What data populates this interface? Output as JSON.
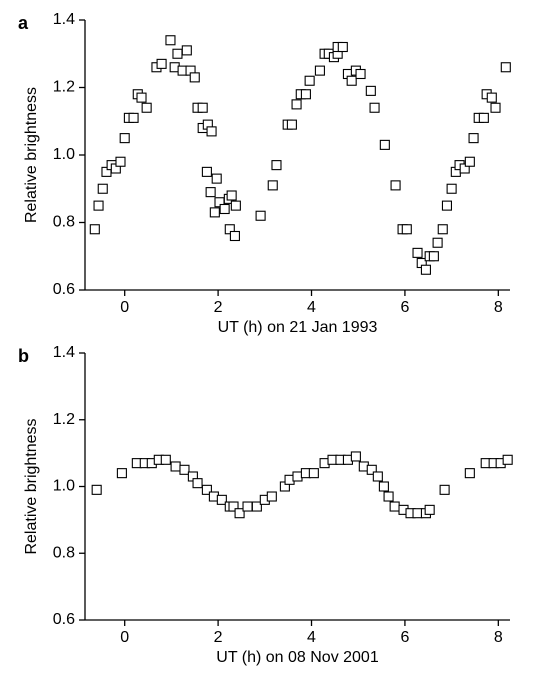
{
  "chart_data": [
    {
      "type": "scatter",
      "panel_label": "a",
      "ylabel": "Relative brightness",
      "xlabel": "UT (h) on 21 Jan 1993",
      "xlim": [
        -0.85,
        8.25
      ],
      "ylim": [
        0.6,
        1.4
      ],
      "xticks": [
        0,
        2,
        4,
        6,
        8
      ],
      "yticks": [
        0.6,
        0.8,
        {
          "value": 1,
          "label": "1.0"
        },
        1.2,
        1.4
      ],
      "color": "#000000",
      "x": [
        -0.64,
        -0.56,
        -0.47,
        -0.39,
        -0.28,
        -0.19,
        -0.09,
        0.0,
        0.09,
        0.19,
        0.28,
        0.36,
        0.47,
        0.68,
        0.79,
        0.98,
        1.07,
        1.13,
        1.24,
        1.33,
        1.41,
        1.5,
        1.56,
        1.67,
        1.67,
        1.78,
        1.86,
        1.76,
        1.84,
        1.97,
        1.93,
        2.03,
        2.14,
        2.23,
        2.29,
        2.38,
        2.25,
        2.36,
        2.91,
        3.17,
        3.25,
        3.49,
        3.58,
        3.68,
        3.77,
        3.88,
        3.96,
        4.18,
        4.28,
        4.37,
        4.48,
        4.56,
        4.56,
        4.67,
        4.78,
        4.86,
        4.95,
        5.05,
        5.27,
        5.35,
        5.57,
        5.8,
        5.95,
        6.04,
        6.27,
        6.36,
        6.45,
        6.53,
        6.62,
        6.7,
        6.81,
        6.9,
        7.0,
        7.09,
        7.17,
        7.28,
        7.39,
        7.47,
        7.58,
        7.69,
        7.75,
        7.86,
        7.94,
        8.16
      ],
      "values": [
        0.78,
        0.85,
        0.9,
        0.95,
        0.97,
        0.96,
        0.98,
        1.05,
        1.11,
        1.11,
        1.18,
        1.17,
        1.14,
        1.26,
        1.27,
        1.34,
        1.26,
        1.3,
        1.25,
        1.31,
        1.25,
        1.23,
        1.14,
        1.14,
        1.08,
        1.09,
        1.07,
        0.95,
        0.89,
        0.93,
        0.83,
        0.86,
        0.84,
        0.87,
        0.88,
        0.85,
        0.78,
        0.76,
        0.82,
        0.91,
        0.97,
        1.09,
        1.09,
        1.15,
        1.18,
        1.18,
        1.22,
        1.25,
        1.3,
        1.3,
        1.29,
        1.3,
        1.32,
        1.32,
        1.24,
        1.22,
        1.25,
        1.24,
        1.19,
        1.14,
        1.03,
        0.91,
        0.78,
        0.78,
        0.71,
        0.68,
        0.66,
        0.7,
        0.7,
        0.74,
        0.78,
        0.85,
        0.9,
        0.95,
        0.97,
        0.96,
        0.98,
        1.05,
        1.11,
        1.11,
        1.18,
        1.17,
        1.14,
        1.26
      ]
    },
    {
      "type": "scatter",
      "panel_label": "b",
      "ylabel": "Relative brightness",
      "xlabel": "UT (h) on 08 Nov 2001",
      "xlim": [
        -0.85,
        8.25
      ],
      "ylim": [
        0.6,
        1.4
      ],
      "xticks": [
        0,
        2,
        4,
        6,
        8
      ],
      "yticks": [
        0.6,
        0.8,
        {
          "value": 1,
          "label": "1.0"
        },
        1.2,
        1.4
      ],
      "color": "#000000",
      "x": [
        -0.6,
        -0.06,
        0.26,
        0.43,
        0.58,
        0.73,
        0.88,
        1.09,
        1.28,
        1.46,
        1.56,
        1.76,
        1.91,
        2.08,
        2.25,
        2.33,
        2.46,
        2.63,
        2.83,
        3.0,
        3.15,
        3.43,
        3.53,
        3.7,
        3.88,
        4.05,
        4.28,
        4.45,
        4.62,
        4.78,
        4.95,
        5.12,
        5.29,
        5.42,
        5.55,
        5.65,
        5.78,
        5.97,
        6.12,
        6.27,
        6.45,
        6.53,
        6.85,
        7.39,
        7.73,
        7.9,
        8.05,
        8.2
      ],
      "values": [
        0.99,
        1.04,
        1.07,
        1.07,
        1.07,
        1.08,
        1.08,
        1.06,
        1.05,
        1.03,
        1.01,
        0.99,
        0.97,
        0.96,
        0.94,
        0.94,
        0.92,
        0.94,
        0.94,
        0.96,
        0.97,
        1.0,
        1.02,
        1.03,
        1.04,
        1.04,
        1.07,
        1.08,
        1.08,
        1.08,
        1.09,
        1.06,
        1.05,
        1.03,
        1.0,
        0.97,
        0.94,
        0.93,
        0.92,
        0.92,
        0.92,
        0.93,
        0.99,
        1.04,
        1.07,
        1.07,
        1.07,
        1.08
      ]
    }
  ]
}
